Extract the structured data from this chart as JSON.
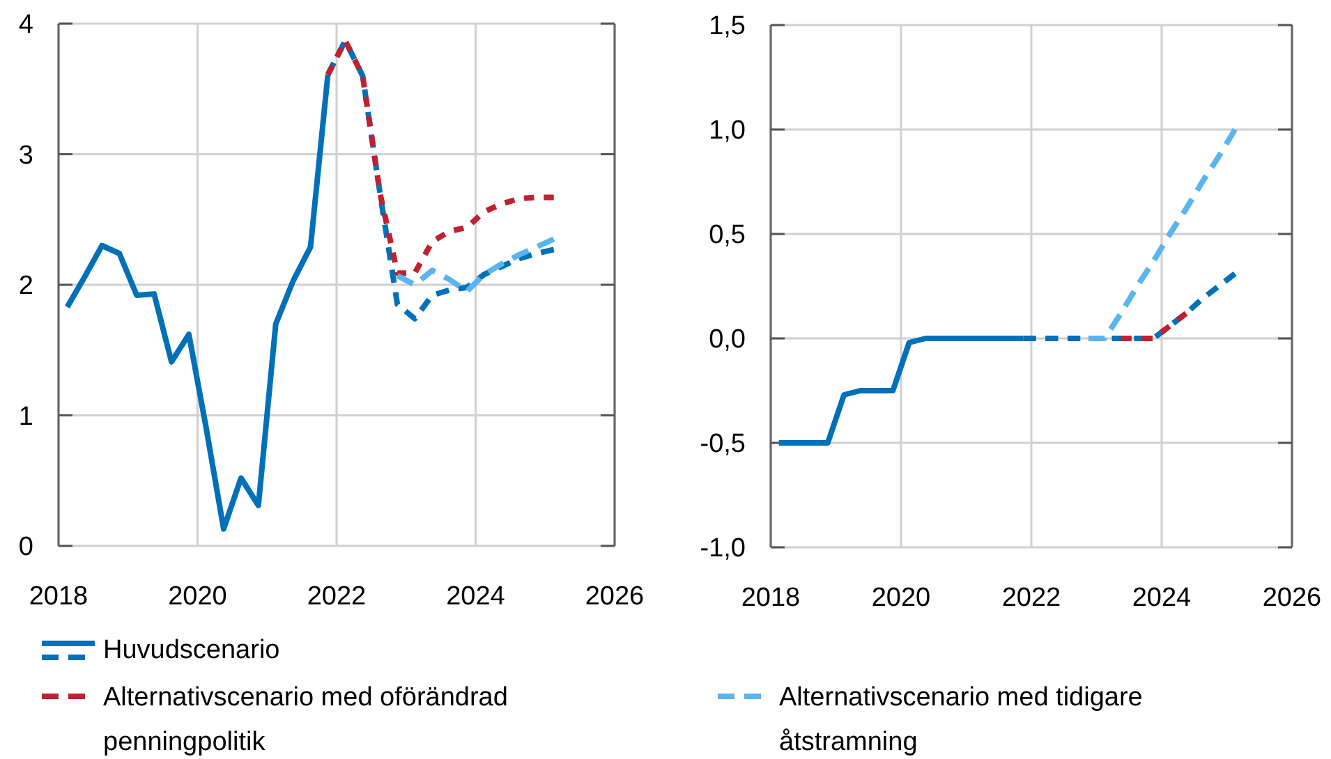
{
  "chart_data": [
    {
      "type": "line",
      "xlim": [
        2018,
        2026
      ],
      "xticks": [
        2018,
        2020,
        2022,
        2024,
        2026
      ],
      "ylim": [
        0,
        4
      ],
      "yticks": [
        0,
        1,
        2,
        3,
        4
      ],
      "grid": true,
      "legend": "bottom",
      "series": [
        {
          "name": "Huvudscenario",
          "color": "#0070b8",
          "line_style": "solid",
          "x": [
            2018.125,
            2018.375,
            2018.625,
            2018.875,
            2019.125,
            2019.375,
            2019.625,
            2019.875,
            2020.125,
            2020.375,
            2020.625,
            2020.875,
            2021.125,
            2021.375,
            2021.625,
            2021.875
          ],
          "values": [
            1.83,
            2.06,
            2.3,
            2.24,
            1.92,
            1.93,
            1.41,
            1.62,
            0.9,
            0.13,
            0.52,
            0.31,
            1.7,
            2.03,
            2.29,
            3.61
          ]
        },
        {
          "color": "#0070b8",
          "line_style": "dashed",
          "x": [
            2021.875,
            2022.125,
            2022.375,
            2022.625,
            2022.875,
            2023.125,
            2023.375,
            2023.625,
            2023.875,
            2024.125,
            2024.375,
            2024.625,
            2024.875,
            2025.125
          ],
          "values": [
            3.61,
            3.87,
            3.6,
            2.7,
            1.85,
            1.74,
            1.92,
            1.96,
            1.98,
            2.08,
            2.14,
            2.2,
            2.24,
            2.27
          ]
        },
        {
          "name": "Alternativscenario med oförändrad penningpolitik",
          "color": "#c0202f",
          "line_style": "dashed",
          "x": [
            2021.875,
            2022.125,
            2022.375,
            2022.625,
            2022.875,
            2023.125,
            2023.375,
            2023.625,
            2023.875,
            2024.125,
            2024.375,
            2024.625,
            2024.875,
            2025.125
          ],
          "values": [
            3.61,
            3.87,
            3.6,
            2.7,
            2.09,
            2.09,
            2.33,
            2.41,
            2.44,
            2.56,
            2.62,
            2.66,
            2.67,
            2.67
          ]
        },
        {
          "name": "Alternativscenario med tidigare åtstramning",
          "color": "#5ab4f0",
          "line_style": "dashed",
          "x": [
            2022.875,
            2023.125,
            2023.375,
            2023.625,
            2023.875,
            2024.125,
            2024.375,
            2024.625,
            2024.875,
            2025.125
          ],
          "values": [
            2.07,
            2.0,
            2.11,
            2.04,
            1.95,
            2.08,
            2.16,
            2.23,
            2.29,
            2.35
          ]
        }
      ]
    },
    {
      "type": "line",
      "xlim": [
        2018,
        2026
      ],
      "xticks": [
        2018,
        2020,
        2022,
        2024,
        2026
      ],
      "ylim": [
        -1,
        1.5
      ],
      "yticks": [
        {
          "value": -1,
          "label": "-1,0"
        },
        {
          "value": -0.5,
          "label": "-0,5"
        },
        {
          "value": 0,
          "label": "0,0"
        },
        {
          "value": 0.5,
          "label": "0,5"
        },
        {
          "value": 1,
          "label": "1,0"
        },
        {
          "value": 1.5,
          "label": "1,5"
        }
      ],
      "grid": true,
      "series": [
        {
          "color": "#0070b8",
          "line_style": "solid",
          "x": [
            2018.125,
            2018.375,
            2018.625,
            2018.875,
            2019.125,
            2019.375,
            2019.625,
            2019.875,
            2020.125,
            2020.375,
            2020.625,
            2020.875,
            2021.125,
            2021.375,
            2021.625,
            2021.875
          ],
          "values": [
            -0.5,
            -0.5,
            -0.5,
            -0.5,
            -0.27,
            -0.25,
            -0.25,
            -0.25,
            -0.02,
            0,
            0,
            0,
            0,
            0,
            0,
            0
          ]
        },
        {
          "color": "#0070b8",
          "line_style": "dashed",
          "x": [
            2021.875,
            2022.125,
            2022.375,
            2022.625,
            2022.875,
            2023.125,
            2023.375,
            2023.625,
            2023.875,
            2024.125,
            2024.375,
            2024.625,
            2024.875,
            2025.125
          ],
          "values": [
            0,
            0,
            0,
            0,
            0,
            0,
            0,
            0,
            0,
            0.06,
            0.12,
            0.19,
            0.25,
            0.31
          ]
        },
        {
          "color": "#c0202f",
          "line_style": "dashed",
          "x": [
            2023.375,
            2023.625,
            2023.875,
            2024.125,
            2024.375
          ],
          "values": [
            0,
            0,
            0,
            0.06,
            0.12
          ]
        },
        {
          "color": "#5ab4f0",
          "line_style": "dashed",
          "x": [
            2022.875,
            2023.125,
            2023.375,
            2023.625,
            2023.875,
            2024.125,
            2024.375,
            2024.625,
            2024.875,
            2025.125
          ],
          "values": [
            0,
            0,
            0.12,
            0.25,
            0.37,
            0.5,
            0.62,
            0.75,
            0.87,
            1.0
          ]
        }
      ]
    }
  ]
}
